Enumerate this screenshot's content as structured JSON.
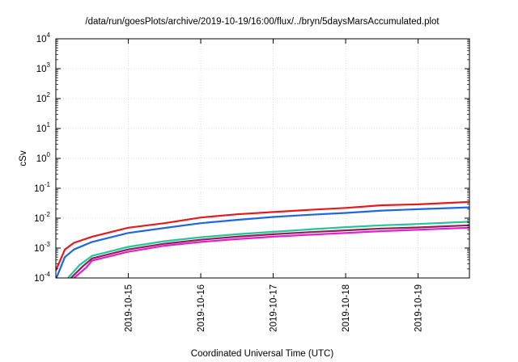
{
  "chart_data": {
    "type": "line",
    "title": "/data/run/goesPlots/archive/2019-10-19/16:00/flux/../bryn/5daysMarsAccumulated.plot",
    "xlabel": "Coordinated Universal Time (UTC)",
    "ylabel": "cSv",
    "yscale": "log",
    "ylim": [
      0.0001,
      10000
    ],
    "xlim": [
      "2019-10-14T00:00",
      "2019-10-19T17:00"
    ],
    "grid": true,
    "y_ticks": [
      {
        "base": "10",
        "exp": "-4",
        "value": 0.0001
      },
      {
        "base": "10",
        "exp": "-3",
        "value": 0.001
      },
      {
        "base": "10",
        "exp": "-2",
        "value": 0.01
      },
      {
        "base": "10",
        "exp": "-1",
        "value": 0.1
      },
      {
        "base": "10",
        "exp": "0",
        "value": 1
      },
      {
        "base": "10",
        "exp": "1",
        "value": 10
      },
      {
        "base": "10",
        "exp": "2",
        "value": 100
      },
      {
        "base": "10",
        "exp": "3",
        "value": 1000
      },
      {
        "base": "10",
        "exp": "4",
        "value": 10000
      }
    ],
    "x_ticks": [
      "2019-10-15",
      "2019-10-16",
      "2019-10-17",
      "2019-10-18",
      "2019-10-19"
    ],
    "x_tick_values": [
      "2019-10-15T00:00",
      "2019-10-16T00:00",
      "2019-10-17T00:00",
      "2019-10-18T00:00",
      "2019-10-19T00:00"
    ],
    "series": [
      {
        "color": "#e41a1c",
        "points": [
          [
            "2019-10-14T00:00",
            0.00018
          ],
          [
            "2019-10-14T03:00",
            0.0009
          ],
          [
            "2019-10-14T06:00",
            0.0015
          ],
          [
            "2019-10-14T12:00",
            0.0024
          ],
          [
            "2019-10-15T00:00",
            0.0048
          ],
          [
            "2019-10-15T12:00",
            0.0068
          ],
          [
            "2019-10-16T00:00",
            0.0105
          ],
          [
            "2019-10-16T12:00",
            0.0135
          ],
          [
            "2019-10-17T00:00",
            0.016
          ],
          [
            "2019-10-17T12:00",
            0.019
          ],
          [
            "2019-10-18T00:00",
            0.022
          ],
          [
            "2019-10-18T12:00",
            0.027
          ],
          [
            "2019-10-19T00:00",
            0.029
          ],
          [
            "2019-10-19T17:00",
            0.035
          ]
        ]
      },
      {
        "color": "#1f66e5",
        "points": [
          [
            "2019-10-14T00:00",
            9e-05
          ],
          [
            "2019-10-14T03:00",
            0.0005
          ],
          [
            "2019-10-14T06:00",
            0.0009
          ],
          [
            "2019-10-14T12:00",
            0.0016
          ],
          [
            "2019-10-15T00:00",
            0.0032
          ],
          [
            "2019-10-15T12:00",
            0.0047
          ],
          [
            "2019-10-16T00:00",
            0.0068
          ],
          [
            "2019-10-16T12:00",
            0.0088
          ],
          [
            "2019-10-17T00:00",
            0.011
          ],
          [
            "2019-10-17T12:00",
            0.013
          ],
          [
            "2019-10-18T00:00",
            0.015
          ],
          [
            "2019-10-18T12:00",
            0.018
          ],
          [
            "2019-10-19T00:00",
            0.02
          ],
          [
            "2019-10-19T17:00",
            0.023
          ]
        ]
      },
      {
        "color": "#25c49a",
        "points": [
          [
            "2019-10-14T04:00",
            0.0001
          ],
          [
            "2019-10-14T08:00",
            0.00028
          ],
          [
            "2019-10-14T12:00",
            0.00055
          ],
          [
            "2019-10-15T00:00",
            0.0011
          ],
          [
            "2019-10-15T12:00",
            0.0017
          ],
          [
            "2019-10-16T00:00",
            0.0023
          ],
          [
            "2019-10-16T12:00",
            0.0029
          ],
          [
            "2019-10-17T00:00",
            0.0035
          ],
          [
            "2019-10-17T12:00",
            0.0042
          ],
          [
            "2019-10-18T00:00",
            0.005
          ],
          [
            "2019-10-18T12:00",
            0.0058
          ],
          [
            "2019-10-19T00:00",
            0.0064
          ],
          [
            "2019-10-19T17:00",
            0.0076
          ]
        ]
      },
      {
        "color": "#8b2252",
        "points": [
          [
            "2019-10-14T05:00",
            0.0001
          ],
          [
            "2019-10-14T09:00",
            0.00025
          ],
          [
            "2019-10-14T12:00",
            0.00045
          ],
          [
            "2019-10-15T00:00",
            0.0009
          ],
          [
            "2019-10-15T12:00",
            0.0014
          ],
          [
            "2019-10-16T00:00",
            0.0019
          ],
          [
            "2019-10-16T12:00",
            0.0024
          ],
          [
            "2019-10-17T00:00",
            0.0029
          ],
          [
            "2019-10-17T12:00",
            0.0034
          ],
          [
            "2019-10-18T00:00",
            0.0039
          ],
          [
            "2019-10-18T12:00",
            0.0045
          ],
          [
            "2019-10-19T00:00",
            0.0049
          ],
          [
            "2019-10-19T17:00",
            0.0058
          ]
        ]
      },
      {
        "color": "#e11fd0",
        "points": [
          [
            "2019-10-14T06:00",
            0.0001
          ],
          [
            "2019-10-14T10:00",
            0.00022
          ],
          [
            "2019-10-14T12:00",
            0.00038
          ],
          [
            "2019-10-15T00:00",
            0.00075
          ],
          [
            "2019-10-15T12:00",
            0.0012
          ],
          [
            "2019-10-16T00:00",
            0.0016
          ],
          [
            "2019-10-16T12:00",
            0.002
          ],
          [
            "2019-10-17T00:00",
            0.0024
          ],
          [
            "2019-10-17T12:00",
            0.0028
          ],
          [
            "2019-10-18T00:00",
            0.0032
          ],
          [
            "2019-10-18T12:00",
            0.0037
          ],
          [
            "2019-10-19T00:00",
            0.0041
          ],
          [
            "2019-10-19T17:00",
            0.0048
          ]
        ]
      }
    ]
  }
}
